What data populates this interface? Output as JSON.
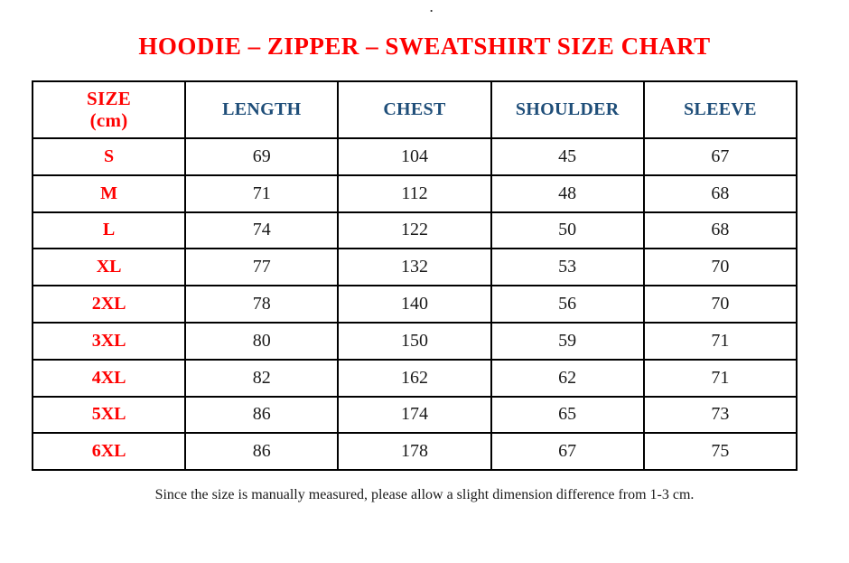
{
  "stray_mark": ".",
  "title": "HOODIE – ZIPPER – SWEATSHIRT SIZE CHART",
  "footnote": "Since the size is manually measured, please allow a slight dimension difference from 1-3 cm.",
  "colors": {
    "title_red": "#fe0000",
    "header_blue": "#1f4e79",
    "body_black": "#1a1a1a",
    "border_black": "#000000"
  },
  "chart_data": {
    "type": "table",
    "title": "HOODIE – ZIPPER – SWEATSHIRT SIZE CHART",
    "unit": "cm",
    "header": {
      "size_label_line1": "SIZE",
      "size_label_line2": "(cm)",
      "columns": [
        "LENGTH",
        "CHEST",
        "SHOULDER",
        "SLEEVE"
      ]
    },
    "rows": [
      {
        "size": "S",
        "values": [
          69,
          104,
          45,
          67
        ]
      },
      {
        "size": "M",
        "values": [
          71,
          112,
          48,
          68
        ]
      },
      {
        "size": "L",
        "values": [
          74,
          122,
          50,
          68
        ]
      },
      {
        "size": "XL",
        "values": [
          77,
          132,
          53,
          70
        ]
      },
      {
        "size": "2XL",
        "values": [
          78,
          140,
          56,
          70
        ]
      },
      {
        "size": "3XL",
        "values": [
          80,
          150,
          59,
          71
        ]
      },
      {
        "size": "4XL",
        "values": [
          82,
          162,
          62,
          71
        ]
      },
      {
        "size": "5XL",
        "values": [
          86,
          174,
          65,
          73
        ]
      },
      {
        "size": "6XL",
        "values": [
          86,
          178,
          67,
          75
        ]
      }
    ]
  }
}
